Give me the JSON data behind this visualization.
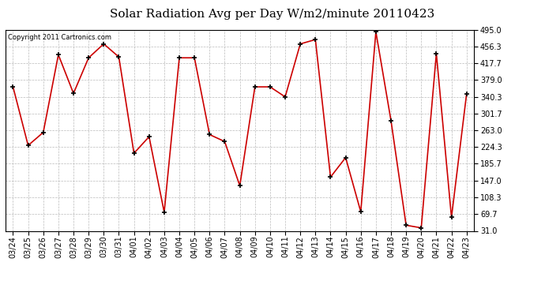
{
  "title": "Solar Radiation Avg per Day W/m2/minute 20110423",
  "copyright_text": "Copyright 2011 Cartronics.com",
  "dates": [
    "03/24",
    "03/25",
    "03/26",
    "03/27",
    "03/28",
    "03/29",
    "03/30",
    "03/31",
    "04/01",
    "04/02",
    "04/03",
    "04/04",
    "04/05",
    "04/06",
    "04/07",
    "04/08",
    "04/09",
    "04/10",
    "04/11",
    "04/12",
    "04/13",
    "04/14",
    "04/15",
    "04/16",
    "04/17",
    "04/18",
    "04/19",
    "04/20",
    "04/21",
    "04/22",
    "04/23"
  ],
  "values": [
    363,
    228,
    258,
    437,
    348,
    430,
    462,
    432,
    210,
    248,
    74,
    430,
    430,
    253,
    237,
    135,
    363,
    363,
    340,
    462,
    472,
    155,
    200,
    75,
    490,
    285,
    44,
    38,
    440,
    62,
    347
  ],
  "line_color": "#cc0000",
  "marker_color": "#000000",
  "bg_color": "#ffffff",
  "plot_bg_color": "#ffffff",
  "grid_color": "#bbbbbb",
  "ylim_min": 31.0,
  "ylim_max": 495.0,
  "yticks": [
    31.0,
    69.7,
    108.3,
    147.0,
    185.7,
    224.3,
    263.0,
    301.7,
    340.3,
    379.0,
    417.7,
    456.3,
    495.0
  ],
  "title_fontsize": 11,
  "copyright_fontsize": 6,
  "tick_fontsize": 7
}
